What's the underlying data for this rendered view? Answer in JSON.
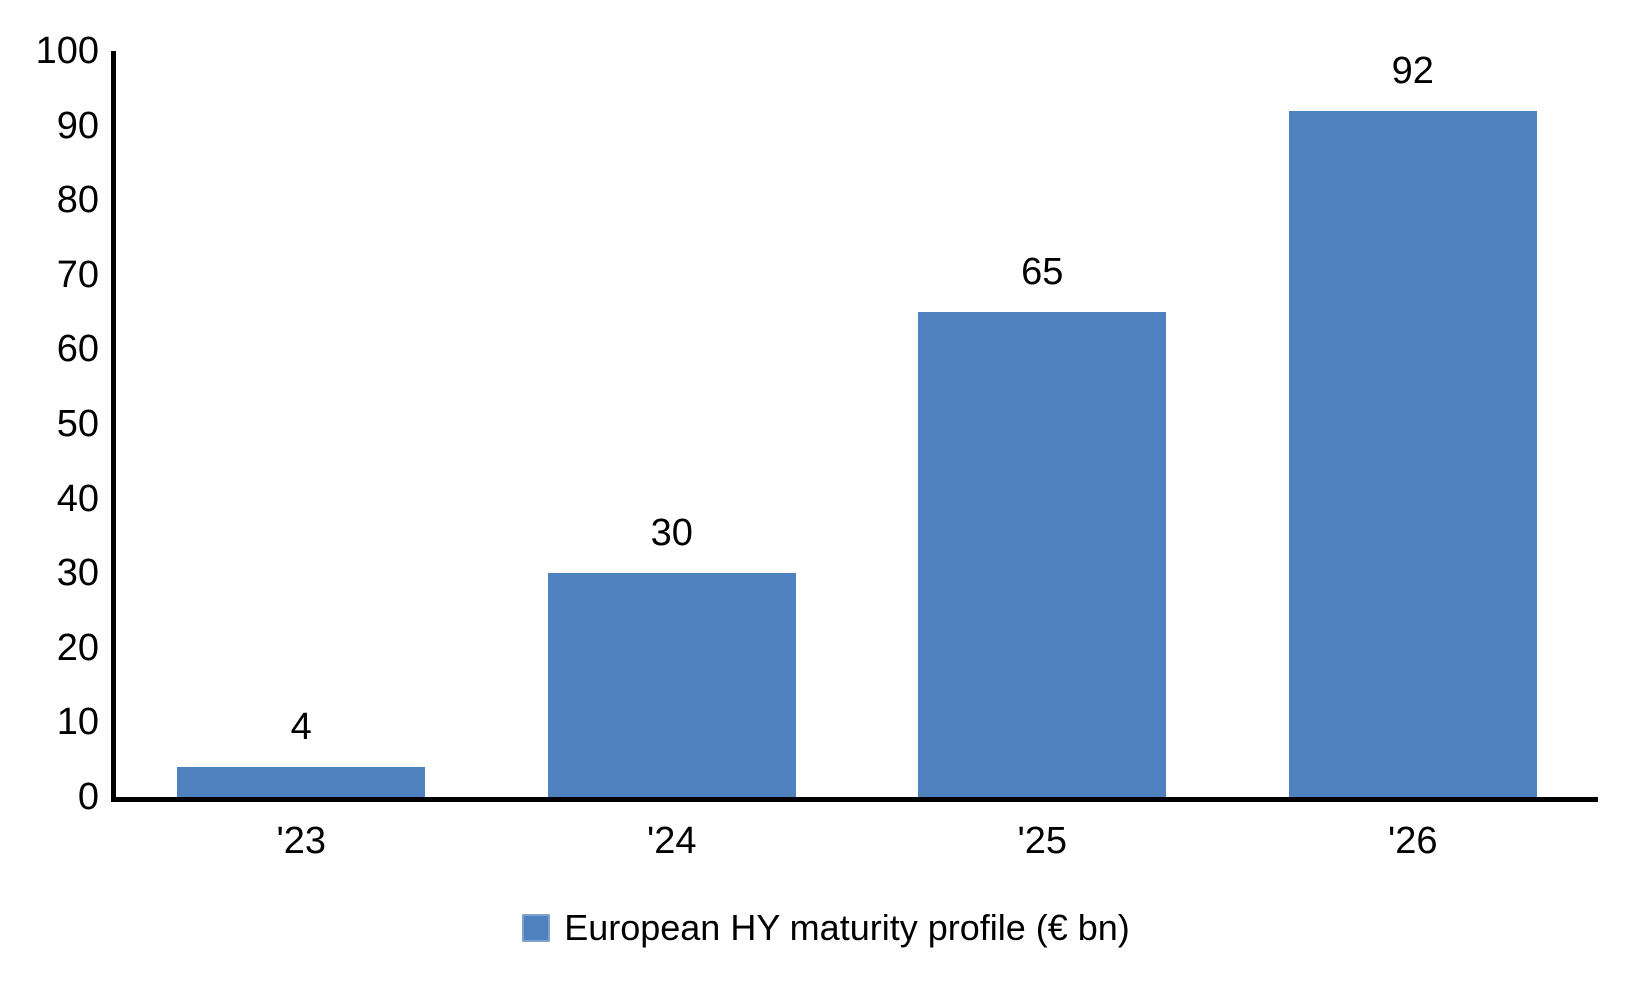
{
  "chart_data": {
    "type": "bar",
    "title": "",
    "categories": [
      "'23",
      "'24",
      "'25",
      "'26"
    ],
    "values": [
      4,
      30,
      65,
      92
    ],
    "data_labels": [
      "4",
      "30",
      "65",
      "92"
    ],
    "xlabel": "",
    "ylabel": "",
    "ylim": [
      0,
      100
    ],
    "ytick_step": 10,
    "yticks": [
      0,
      10,
      20,
      30,
      40,
      50,
      60,
      70,
      80,
      90,
      100
    ],
    "grid": false,
    "legend": {
      "position": "bottom-center",
      "label": "European HY maturity profile (€ bn)"
    },
    "colors": {
      "bar_fill": "#4E81BD",
      "bar_edge": "#7FA2CD",
      "axis": "#000000",
      "text": "#000000",
      "background": "#ffffff"
    }
  }
}
